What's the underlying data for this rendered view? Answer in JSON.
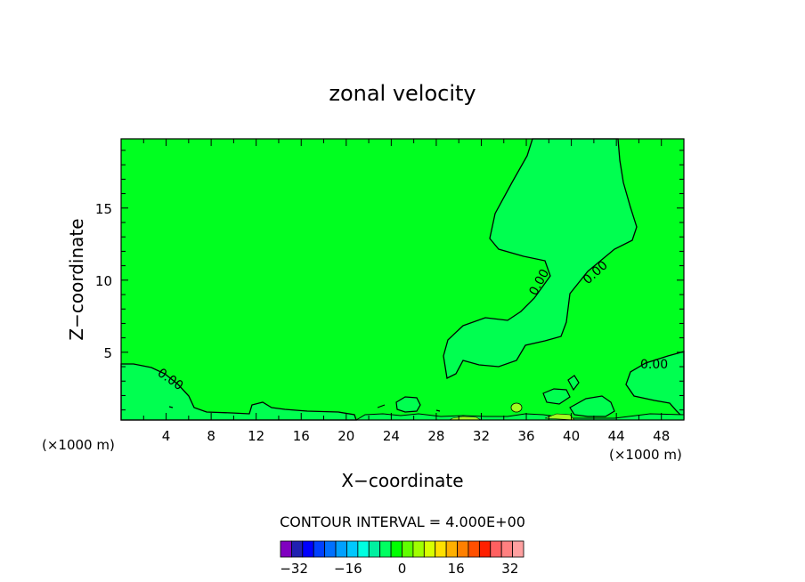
{
  "chart_data": {
    "type": "contour",
    "title": "zonal velocity",
    "xlabel": "X−coordinate",
    "ylabel": "Z−coordinate",
    "x_unit_left": "(×1000 m)",
    "x_unit_right": "(×1000 m)",
    "xlim": [
      0,
      50
    ],
    "ylim": [
      0.3,
      19.8
    ],
    "x_ticks": [
      4,
      8,
      12,
      16,
      20,
      24,
      28,
      32,
      36,
      40,
      44,
      48
    ],
    "y_ticks": [
      5,
      10,
      15
    ],
    "contour_labels": [
      "0.00",
      "0.00",
      "0.00",
      "0.00",
      "0.00"
    ],
    "contour_interval_text": "CONTOUR INTERVAL = 4.000E+00",
    "colorbar": {
      "tick_labels": [
        "−32",
        "−16",
        "0",
        "16",
        "32"
      ],
      "tick_values": [
        -32,
        -16,
        0,
        16,
        32
      ],
      "min": -36,
      "max": 36,
      "colors": [
        "#8000c0",
        "#2020b0",
        "#0000ff",
        "#0040ff",
        "#0070ff",
        "#00a0ff",
        "#00c8ff",
        "#00ffe0",
        "#00f0a0",
        "#00ff60",
        "#00ff00",
        "#60ff00",
        "#a0ff00",
        "#d8ff00",
        "#ffe000",
        "#ffb000",
        "#ff8000",
        "#ff5000",
        "#ff2000",
        "#ff6060",
        "#ff8080",
        "#ffa0a0"
      ]
    },
    "field_colors": {
      "background": "#00ff20",
      "negative_region": "#00ff50",
      "positive_patch": "#a0ff20"
    }
  }
}
